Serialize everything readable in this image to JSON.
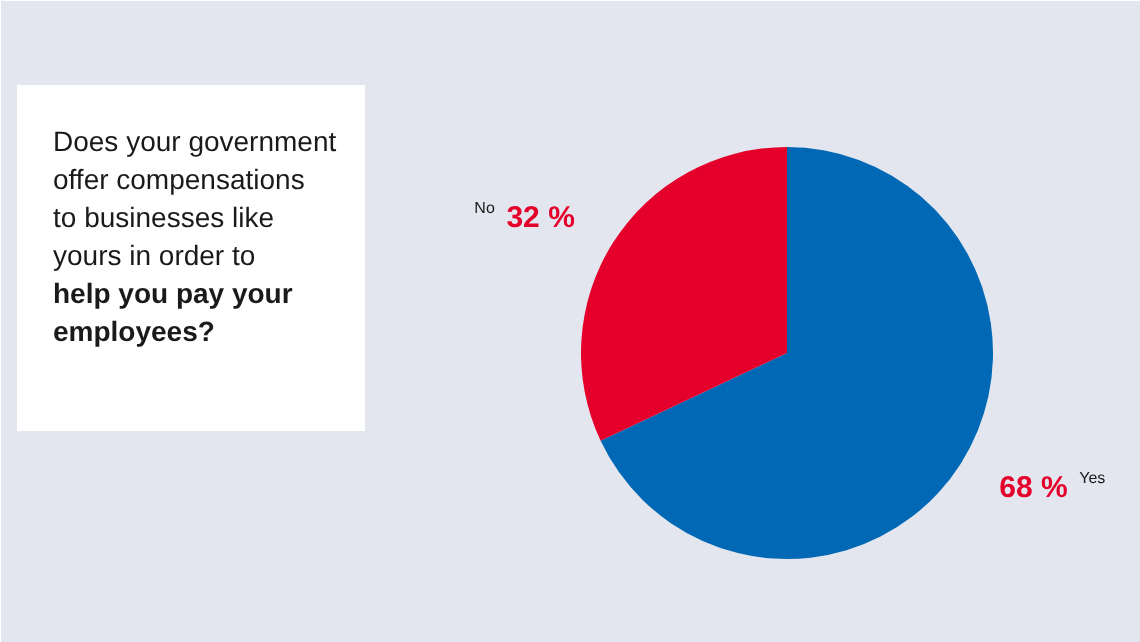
{
  "chart_data": {
    "type": "pie",
    "title": "Does your government offer compensations to businesses like yours in order to",
    "subtitle": "help you pay your employees?",
    "categories": [
      "Yes",
      "No"
    ],
    "values": [
      68,
      32
    ],
    "colors": [
      "#0068b4",
      "#e4002b"
    ],
    "value_labels": [
      "68 %",
      "32 %"
    ]
  }
}
